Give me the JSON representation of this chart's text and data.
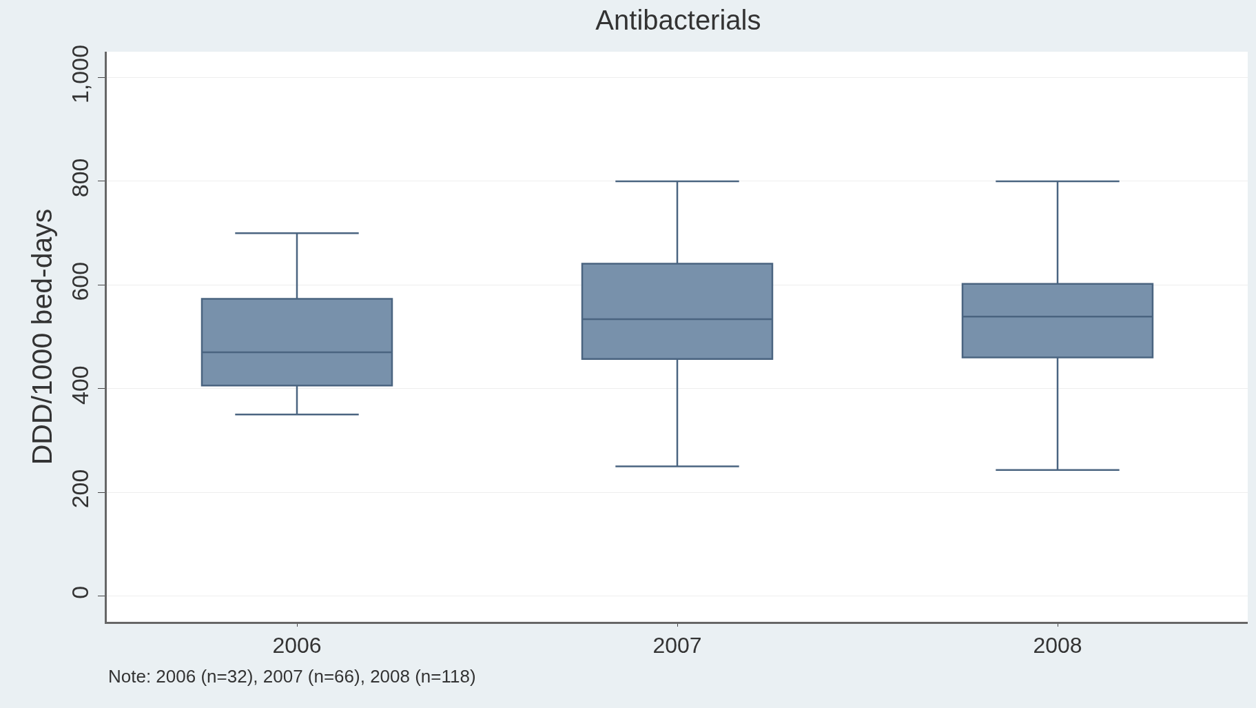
{
  "chart_data": {
    "type": "box",
    "title": "Antibacterials",
    "ylabel": "DDD/1000 bed-days",
    "categories": [
      "2006",
      "2007",
      "2008"
    ],
    "boxes": [
      {
        "low": 350,
        "q1": 406,
        "median": 470,
        "q3": 573,
        "high": 700
      },
      {
        "low": 250,
        "q1": 457,
        "median": 534,
        "q3": 641,
        "high": 800
      },
      {
        "low": 243,
        "q1": 460,
        "median": 539,
        "q3": 602,
        "high": 800
      }
    ],
    "color": "#7891ab",
    "ylim": [
      -50,
      1050
    ],
    "yticks": [
      0,
      200,
      400,
      600,
      800,
      {
        "value": 1000,
        "label": "1,000"
      }
    ],
    "grid": "y",
    "annotations": [
      "Note: 2006 (n=32), 2007 (n=66), 2008 (n=118)"
    ]
  }
}
